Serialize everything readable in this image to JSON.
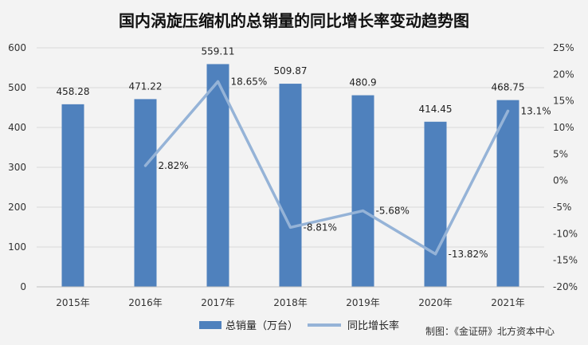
{
  "chart_data": {
    "type": "bar",
    "title": "国内涡旋压缩机的总销量的同比增长率变动趋势图",
    "categories": [
      "2015年",
      "2016年",
      "2017年",
      "2018年",
      "2019年",
      "2020年",
      "2021年"
    ],
    "series": [
      {
        "name": "总销量（万台）",
        "type": "bar",
        "axis": "left",
        "values": [
          458.28,
          471.22,
          559.11,
          509.87,
          480.9,
          414.45,
          468.75
        ],
        "labels": [
          "458.28",
          "471.22",
          "559.11",
          "509.87",
          "480.9",
          "414.45",
          "468.75"
        ],
        "color": "#4f81bd"
      },
      {
        "name": "同比增长率",
        "type": "line",
        "axis": "right",
        "values": [
          null,
          2.82,
          18.65,
          -8.81,
          -5.68,
          -13.82,
          13.1
        ],
        "labels": [
          "",
          "2.82%",
          "18.65%",
          "-8.81%",
          "-5.68%",
          "-13.82%",
          "13.1%"
        ],
        "color": "#95b3d7"
      }
    ],
    "ylim_left": [
      0,
      600
    ],
    "yticks_left": [
      "0",
      "100",
      "200",
      "300",
      "400",
      "500",
      "600"
    ],
    "ylim_right": [
      -20,
      25
    ],
    "yticks_right": [
      "-20%",
      "-15%",
      "-10%",
      "-5%",
      "0%",
      "5%",
      "10%",
      "15%",
      "20%",
      "25%"
    ],
    "grid": true,
    "legend_position": "bottom",
    "source": "制图：《金证研》北方资本中心"
  }
}
